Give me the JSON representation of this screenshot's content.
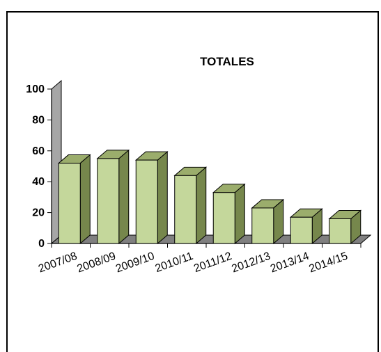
{
  "chart_data": {
    "type": "bar",
    "title": "TOTALES",
    "categories": [
      "2007/08",
      "2008/09",
      "2009/10",
      "2010/11",
      "2011/12",
      "2012/13",
      "2013/14",
      "2014/15"
    ],
    "values": [
      52,
      55,
      54,
      44,
      33,
      23,
      17,
      16
    ],
    "ylim": [
      0,
      100
    ],
    "yticks": [
      0,
      20,
      40,
      60,
      80,
      100
    ],
    "xlabel": "",
    "ylabel": "",
    "grid": false,
    "legend": "none",
    "colors": {
      "bar_front": "#c4d79b",
      "bar_top": "#9bad6c",
      "bar_side": "#76874c",
      "wall": "#a6a6a6",
      "floor": "#808080"
    }
  }
}
